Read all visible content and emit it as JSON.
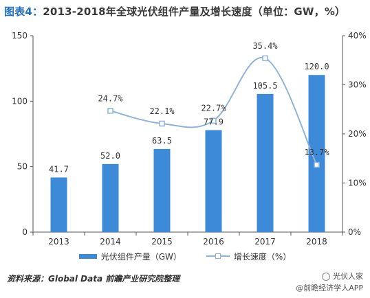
{
  "title": {
    "prefix": "图表4：",
    "text": "2013-2018年全球光伏组件产量及增长速度（单位：GW，%）"
  },
  "chart_data": {
    "type": "bar",
    "categories": [
      "2013",
      "2014",
      "2015",
      "2016",
      "2017",
      "2018"
    ],
    "series": [
      {
        "name": "光伏组件产量（GW）",
        "type": "bar",
        "axis": "left",
        "values": [
          41.7,
          52.0,
          63.5,
          77.9,
          105.5,
          120.0
        ],
        "labels": [
          "41.7",
          "52.0",
          "63.5",
          "77.9",
          "105.5",
          "120.0"
        ],
        "color": "#3c8ad8"
      },
      {
        "name": "增长速度（%）",
        "type": "line",
        "axis": "right",
        "x": [
          "2014",
          "2015",
          "2016",
          "2017",
          "2018"
        ],
        "values": [
          24.7,
          22.1,
          22.7,
          35.4,
          13.7
        ],
        "labels": [
          "24.7%",
          "22.1%",
          "22.7%",
          "35.4%",
          "13.7%"
        ],
        "color": "#8fb3d8"
      }
    ],
    "y_left": {
      "min": 0,
      "max": 150,
      "ticks": [
        0,
        50,
        100,
        150
      ],
      "tick_labels": [
        "0",
        "50",
        "100",
        "150"
      ]
    },
    "y_right": {
      "min": 0,
      "max": 40,
      "ticks": [
        0,
        10,
        20,
        30,
        40
      ],
      "tick_labels": [
        "0%",
        "10%",
        "20%",
        "30%",
        "40%"
      ]
    },
    "grid": false,
    "legend_position": "bottom"
  },
  "legend": {
    "bar_label": "光伏组件产量（GW）",
    "line_label": "增长速度（%）"
  },
  "source": "资料来源：Global Data  前瞻产业研究院整理",
  "brand": {
    "line1": "光伏人家",
    "line2": "@前瞻经济学人APP"
  }
}
